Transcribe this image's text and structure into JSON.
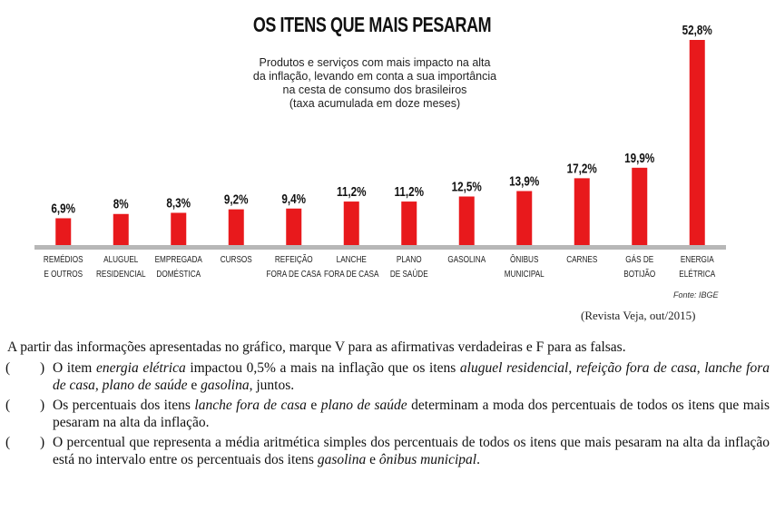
{
  "chart_data": {
    "type": "bar",
    "title": "OS ITENS QUE MAIS PESARAM",
    "subtitle": [
      "Produtos e serviços com mais impacto na alta",
      "da inflação, levando em conta a sua importância",
      "na cesta de consumo dos brasileiros",
      "(taxa acumulada em doze meses)"
    ],
    "categories": [
      [
        "REMÉDIOS",
        "E OUTROS"
      ],
      [
        "ALUGUEL",
        "RESIDENCIAL"
      ],
      [
        "EMPREGADA",
        "DOMÉSTICA"
      ],
      [
        "CURSOS"
      ],
      [
        "REFEIÇÃO",
        "FORA DE CASA"
      ],
      [
        "LANCHE",
        "FORA DE CASA"
      ],
      [
        "PLANO",
        "DE SAÚDE"
      ],
      [
        "GASOLINA"
      ],
      [
        "ÔNIBUS",
        "MUNICIPAL"
      ],
      [
        "CARNES"
      ],
      [
        "GÁS DE",
        "BOTIJÃO"
      ],
      [
        "ENERGIA",
        "ELÉTRICA"
      ]
    ],
    "values": [
      6.9,
      8,
      8.3,
      9.2,
      9.4,
      11.2,
      11.2,
      12.5,
      13.9,
      17.2,
      19.9,
      52.8
    ],
    "value_labels": [
      "6,9%",
      "8%",
      "8,3%",
      "9,2%",
      "9,4%",
      "11,2%",
      "11,2%",
      "12,5%",
      "13,9%",
      "17,2%",
      "19,9%",
      "52,8%"
    ],
    "ylim": [
      0,
      52.8
    ],
    "grid": false,
    "bar_color": "#e8191c",
    "source": "Fonte: IBGE"
  },
  "citation": "(Revista Veja, out/2015)",
  "question": {
    "prompt": "A partir das informações apresentadas no gráfico, marque V para as afirmativas verdadeiras e F para as falsas.",
    "paren_open": "(",
    "paren_close": ")",
    "statements": [
      [
        {
          "t": "O item ",
          "i": false
        },
        {
          "t": "energia elétrica",
          "i": true
        },
        {
          "t": " impactou 0,5% a mais na inflação que os itens ",
          "i": false
        },
        {
          "t": "aluguel residencial",
          "i": true
        },
        {
          "t": ", ",
          "i": false
        },
        {
          "t": "refeição fora de casa",
          "i": true
        },
        {
          "t": ", ",
          "i": false
        },
        {
          "t": "lanche fora de casa",
          "i": true
        },
        {
          "t": ", ",
          "i": false
        },
        {
          "t": "plano de saúde",
          "i": true
        },
        {
          "t": " e ",
          "i": false
        },
        {
          "t": "gasolina",
          "i": true
        },
        {
          "t": ", juntos.",
          "i": false
        }
      ],
      [
        {
          "t": "Os percentuais dos itens ",
          "i": false
        },
        {
          "t": "lanche fora de casa",
          "i": true
        },
        {
          "t": " e ",
          "i": false
        },
        {
          "t": "plano de saúde",
          "i": true
        },
        {
          "t": " determinam a moda dos percentuais de todos os itens que mais pesaram na alta da inflação.",
          "i": false
        }
      ],
      [
        {
          "t": "O percentual que representa a média aritmética simples dos percentuais de todos os itens que mais pesaram na alta da inflação está no intervalo entre os percentuais dos itens ",
          "i": false
        },
        {
          "t": "gasolina",
          "i": true
        },
        {
          "t": " e ",
          "i": false
        },
        {
          "t": "ônibus municipal",
          "i": true
        },
        {
          "t": ".",
          "i": false
        }
      ]
    ]
  }
}
